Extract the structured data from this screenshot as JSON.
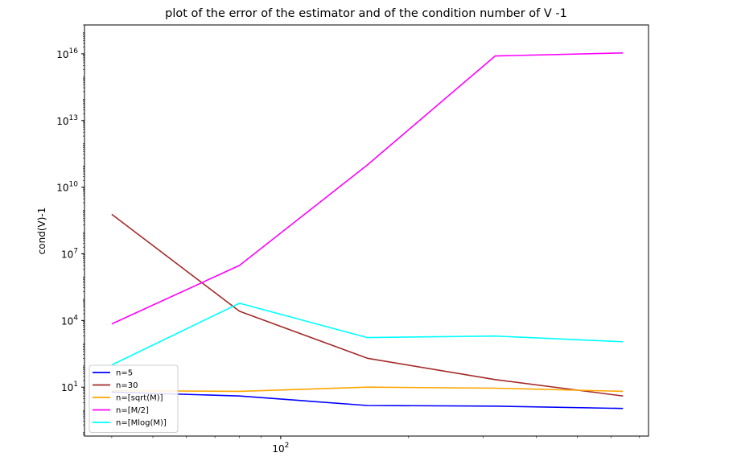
{
  "chart_data": {
    "type": "line",
    "title": "plot of the error of the estimator and of the condition number of V -1",
    "xlabel": "",
    "ylabel": "cond(V)-1",
    "xscale": "log",
    "yscale": "log",
    "x": [
      40,
      80,
      160,
      320,
      640
    ],
    "xlim": [
      34.5,
      735
    ],
    "ylim": [
      0.063,
      2e+17
    ],
    "x_tick_labels": [
      "10^2"
    ],
    "y_tick_labels": [
      "10^1",
      "10^4",
      "10^7",
      "10^10",
      "10^13",
      "10^16"
    ],
    "grid": false,
    "legend_position": "lower-left",
    "series": [
      {
        "name": "n=5",
        "color": "#0000ff",
        "values": [
          6,
          4,
          1.5,
          1.4,
          1.1
        ]
      },
      {
        "name": "n=30",
        "color": "#a52a2a",
        "values": [
          600000000,
          26000,
          200,
          22,
          4
        ]
      },
      {
        "name": "n=[sqrt(M)]",
        "color": "#ffa500",
        "values": [
          7,
          6.5,
          10,
          9,
          6.5
        ]
      },
      {
        "name": "n=[M/2]",
        "color": "#ff00ff",
        "values": [
          7000,
          3000000,
          100000000000,
          8000000000000000,
          11000000000000000
        ]
      },
      {
        "name": "n=[Mlog(M)]",
        "color": "#00ffff",
        "values": [
          100,
          60000,
          1700,
          2000,
          1100
        ]
      }
    ]
  }
}
